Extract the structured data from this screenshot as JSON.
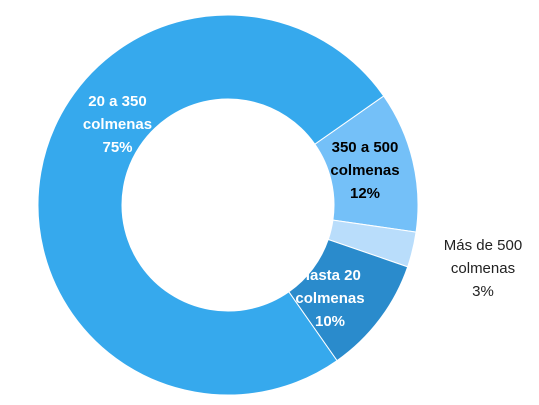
{
  "chart_data": {
    "type": "donut",
    "categories": [
      "350 a 500 colmenas",
      "Más de 500 colmenas",
      "Hasta 20 colmenas",
      "20 a 350 colmenas"
    ],
    "values": [
      12,
      3,
      10,
      75
    ],
    "value_labels": [
      "12%",
      "3%",
      "10%",
      "75%"
    ],
    "colors": [
      "#74c0f8",
      "#b9ddfb",
      "#2a8bcc",
      "#36a9ed"
    ]
  }
}
